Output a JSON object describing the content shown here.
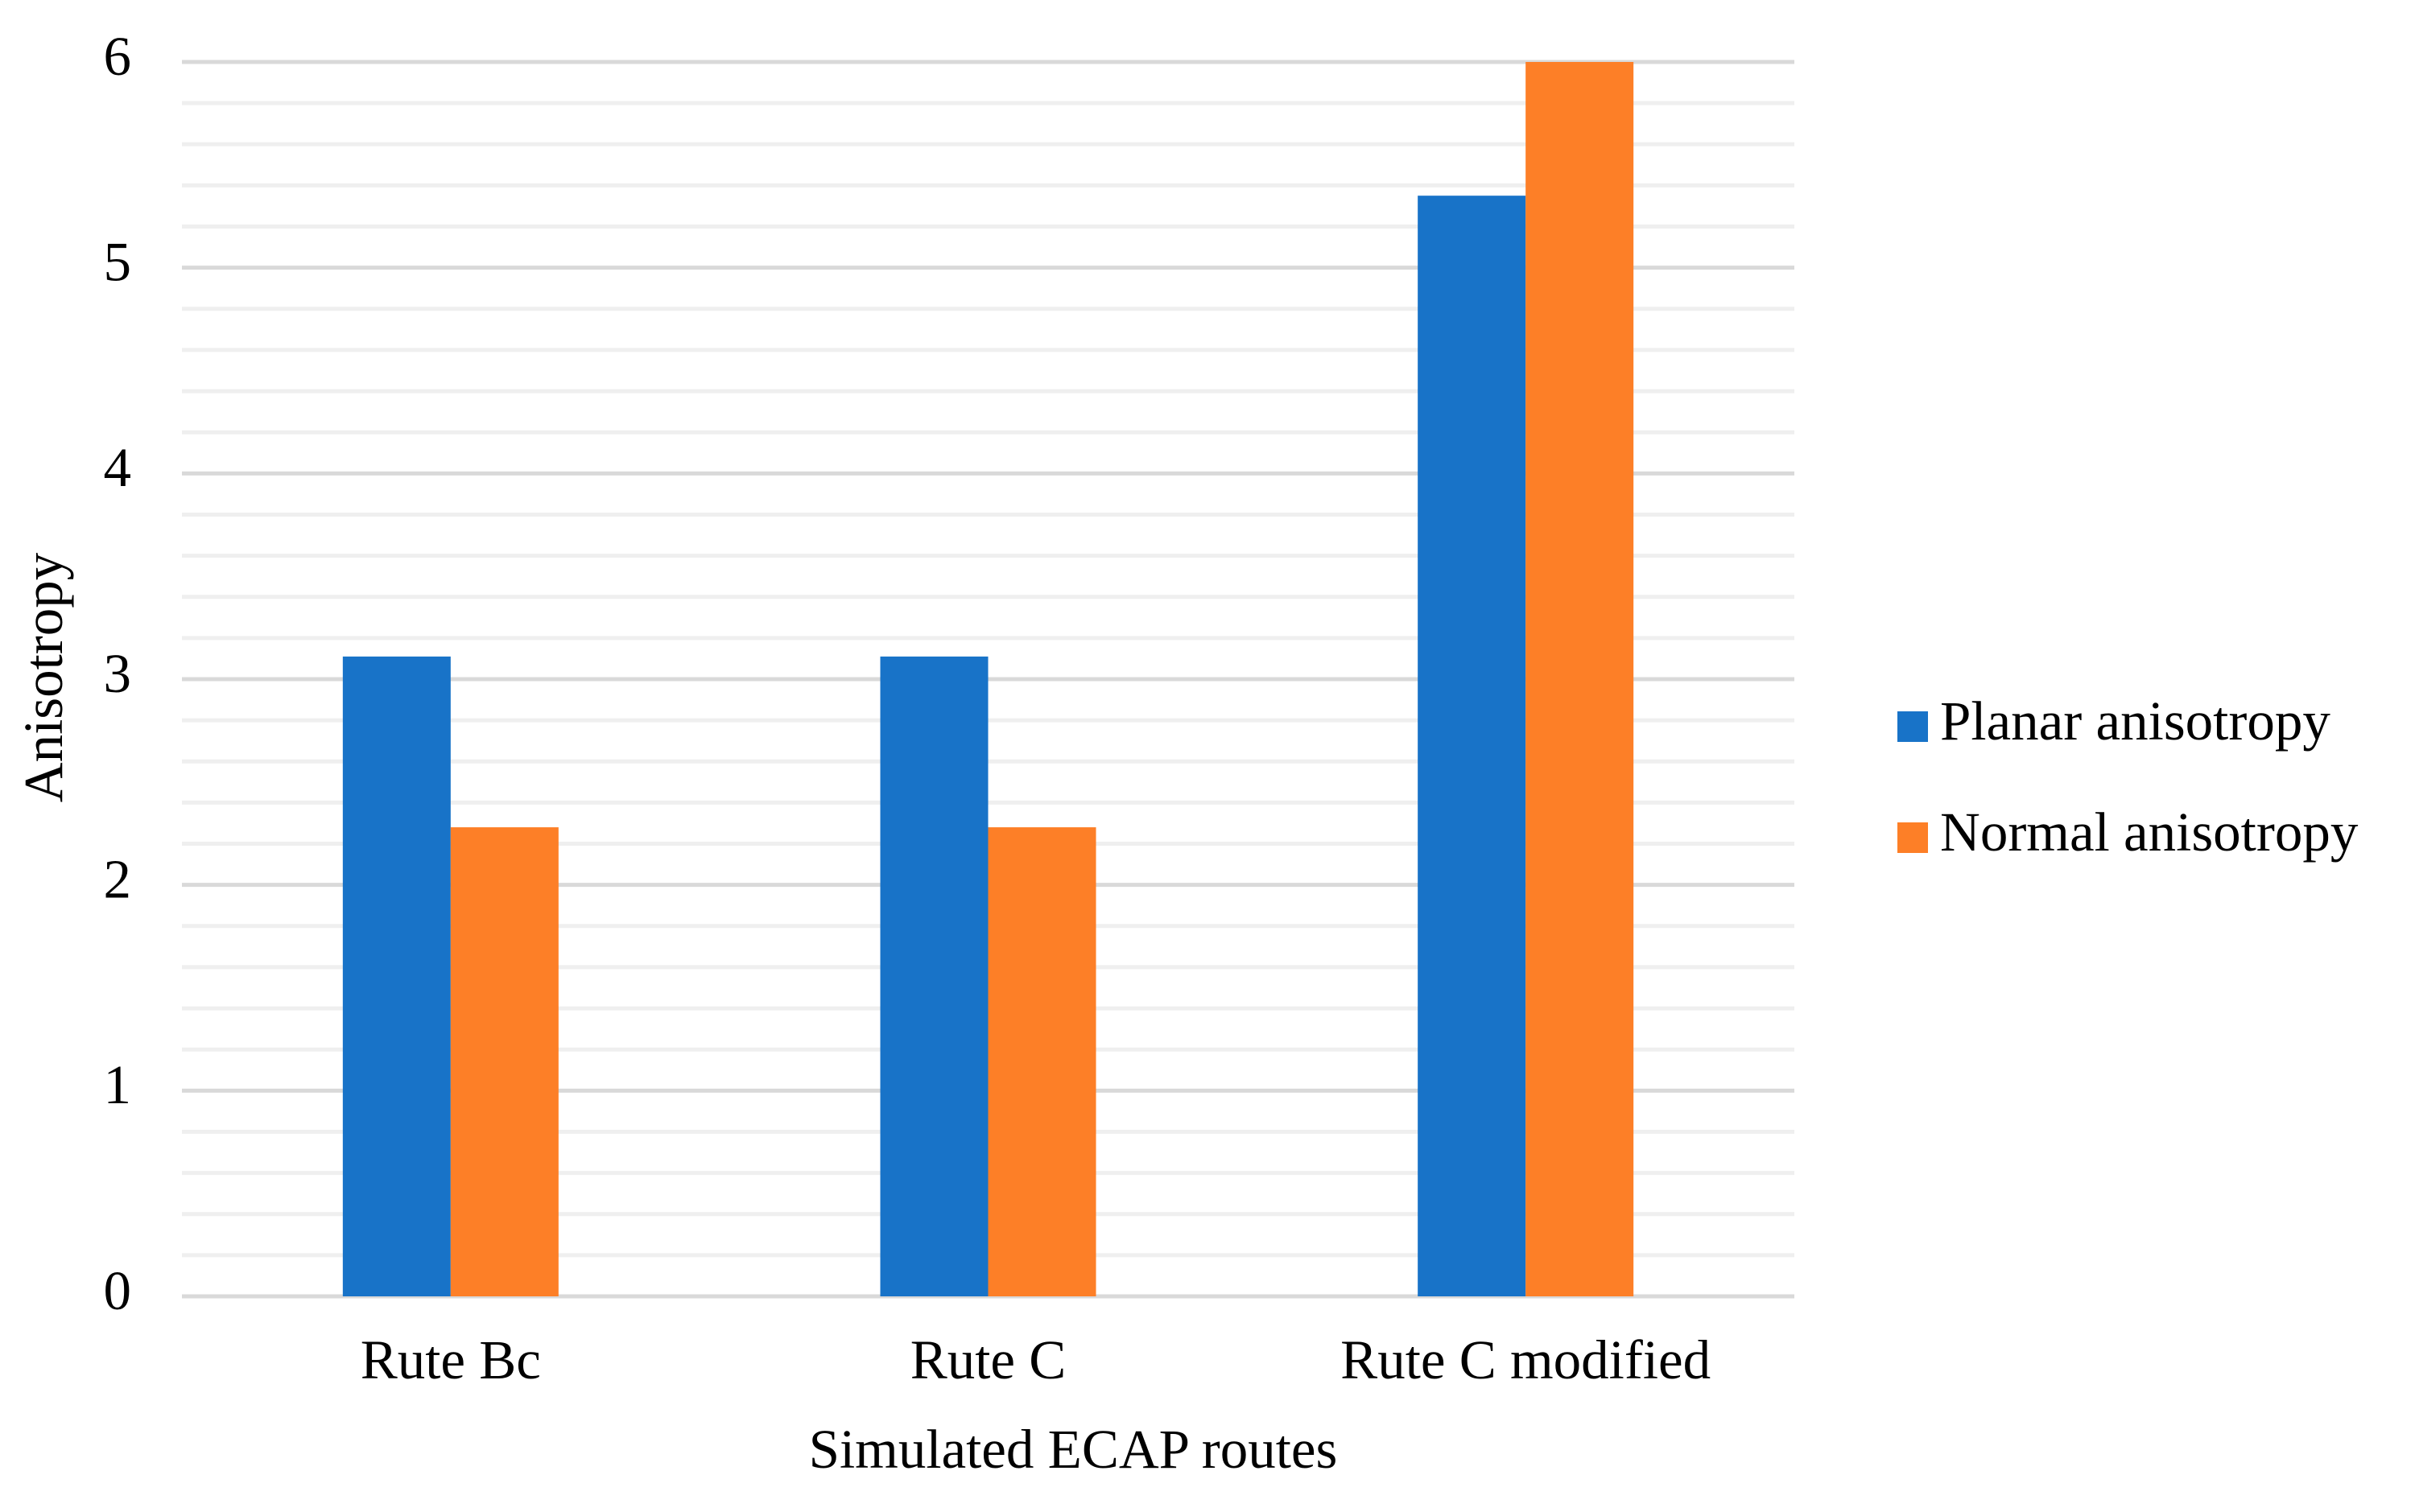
{
  "chart_data": {
    "type": "bar",
    "x_label": "Simulated ECAP routes",
    "y_label": "Anisotropy",
    "categories": [
      "Rute Bc",
      "Rute C",
      "Rute C modified"
    ],
    "series": [
      {
        "name": "Planar anisotropy",
        "color": "#1873c8",
        "values": [
          3.11,
          3.11,
          5.35
        ]
      },
      {
        "name": "Normal anisotropy",
        "color": "#fd7f27",
        "values": [
          2.28,
          2.28,
          6.0
        ]
      }
    ],
    "ylim": [
      0,
      6
    ],
    "yticks": [
      0,
      1,
      2,
      3,
      4,
      5,
      6
    ],
    "grid": true,
    "minor_grid_divisions": 5,
    "legend": "right"
  }
}
